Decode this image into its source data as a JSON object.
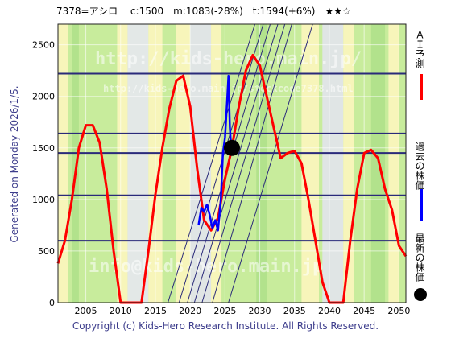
{
  "header": {
    "title": "7378=アシロ　 c:1500　m:1083(-28%)　t:1594(+6%)　★★☆"
  },
  "side_label": "Generated on Monday 2026/1/5.",
  "footer": {
    "credit": "Copyright (c) Kids-Hero Research Institute. All Rights Reserved."
  },
  "watermarks": {
    "line1": "http://kids-hero.main.jp/",
    "line2": "http://kids-hero.main.jp/stockcode7378.html",
    "line3": "info@kids-hero.main.jp"
  },
  "legend": {
    "ai": "ＡＩ予測",
    "past": "過去の株価",
    "latest": "最新の株価",
    "ai_color": "#ff0000",
    "past_color": "#0000ff",
    "latest_color": "#000000"
  },
  "chart_data": {
    "type": "line",
    "xlim": [
      2001,
      2051
    ],
    "ylim": [
      0,
      2700
    ],
    "x_ticks": [
      2005,
      2010,
      2015,
      2020,
      2025,
      2030,
      2035,
      2040,
      2045,
      2050
    ],
    "y_ticks": [
      0,
      500,
      1000,
      1500,
      2000,
      2500
    ],
    "horizontal_levels": [
      600,
      1040,
      1450,
      1640,
      2220
    ],
    "latest_point": {
      "x": 2026.0,
      "y": 1500
    },
    "series": [
      {
        "color": "#ff0000",
        "points": [
          [
            2001,
            380
          ],
          [
            2002,
            600
          ],
          [
            2003,
            1000
          ],
          [
            2004,
            1500
          ],
          [
            2005,
            1720
          ],
          [
            2006,
            1720
          ],
          [
            2007,
            1550
          ],
          [
            2008,
            1100
          ],
          [
            2009,
            500
          ],
          [
            2010,
            0
          ],
          [
            2013,
            0
          ],
          [
            2014,
            500
          ],
          [
            2015,
            1050
          ],
          [
            2016,
            1500
          ],
          [
            2017,
            1880
          ],
          [
            2018,
            2150
          ],
          [
            2019,
            2200
          ],
          [
            2020,
            1900
          ],
          [
            2021,
            1300
          ],
          [
            2022,
            800
          ],
          [
            2023,
            700
          ],
          [
            2024,
            820
          ],
          [
            2025,
            1200
          ],
          [
            2026,
            1500
          ],
          [
            2027,
            1900
          ],
          [
            2028,
            2250
          ],
          [
            2029,
            2400
          ],
          [
            2030,
            2300
          ],
          [
            2031,
            2000
          ],
          [
            2032,
            1700
          ],
          [
            2033,
            1400
          ],
          [
            2034,
            1450
          ],
          [
            2035,
            1470
          ],
          [
            2036,
            1350
          ],
          [
            2037,
            1000
          ],
          [
            2038,
            600
          ],
          [
            2039,
            200
          ],
          [
            2040,
            0
          ],
          [
            2042,
            0
          ],
          [
            2043,
            600
          ],
          [
            2044,
            1100
          ],
          [
            2045,
            1450
          ],
          [
            2046,
            1480
          ],
          [
            2047,
            1400
          ],
          [
            2048,
            1100
          ],
          [
            2049,
            900
          ],
          [
            2050,
            550
          ],
          [
            2051,
            450
          ]
        ]
      },
      {
        "color": "#0000ff",
        "points": [
          [
            2021.2,
            750
          ],
          [
            2021.6,
            920
          ],
          [
            2022.0,
            880
          ],
          [
            2022.4,
            950
          ],
          [
            2022.8,
            850
          ],
          [
            2023.2,
            720
          ],
          [
            2023.6,
            800
          ],
          [
            2024.0,
            700
          ],
          [
            2024.4,
            1000
          ],
          [
            2024.7,
            1450
          ],
          [
            2025.0,
            1600
          ],
          [
            2025.3,
            1950
          ],
          [
            2025.5,
            2200
          ],
          [
            2025.7,
            1700
          ],
          [
            2025.9,
            1500
          ],
          [
            2026.0,
            1480
          ]
        ]
      }
    ]
  }
}
